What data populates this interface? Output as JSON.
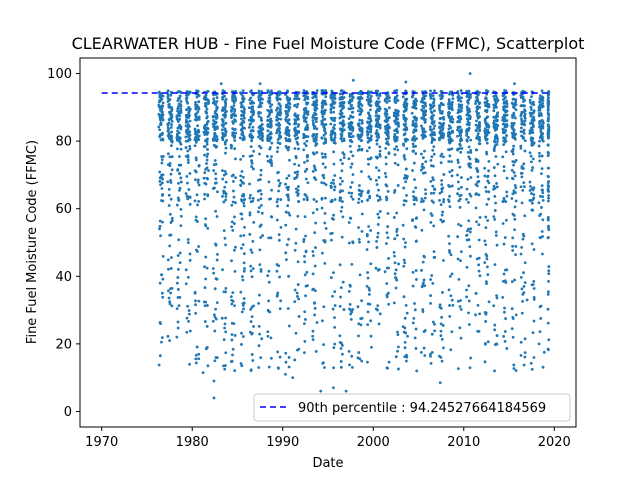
{
  "chart_data": {
    "type": "scatter",
    "title": "CLEARWATER HUB - Fine Fuel Moisture Code (FFMC), Scatterplot",
    "xlabel": "Date",
    "ylabel": "Fine Fuel Moisture Code (FFMC)",
    "xlim": [
      1967.6,
      2022.4
    ],
    "ylim": [
      -4.6,
      104.6
    ],
    "xticks": [
      1970,
      1980,
      1990,
      2000,
      2010,
      2020
    ],
    "xtick_labels": [
      "1970",
      "1980",
      "1990",
      "2000",
      "2010",
      "2020"
    ],
    "yticks": [
      0,
      20,
      40,
      60,
      80,
      100
    ],
    "ytick_labels": [
      "0",
      "20",
      "40",
      "60",
      "80",
      "100"
    ],
    "grid": false,
    "legend_position": "lower-right",
    "series": [
      {
        "name": "FFMC",
        "style": "points",
        "color": "#1f77b4",
        "data_range": {
          "x_start": 1976.3,
          "x_end": 2019.4,
          "fire_season_fraction": 0.5,
          "y_typical_max": 95,
          "y_min": 4,
          "y_max": 100
        },
        "sample_points": [
          [
            1976.4,
            90
          ],
          [
            1976.5,
            52
          ],
          [
            1976.5,
            26
          ],
          [
            1976.6,
            20.5
          ],
          [
            1976.7,
            35
          ],
          [
            1977.5,
            21
          ],
          [
            1978.3,
            22
          ],
          [
            1981.2,
            11.5
          ],
          [
            1982.4,
            4
          ],
          [
            1982.4,
            9
          ],
          [
            1982.5,
            15
          ],
          [
            1983.2,
            97
          ],
          [
            1984.6,
            26
          ],
          [
            1987.5,
            97
          ],
          [
            1990.3,
            11
          ],
          [
            1991.1,
            10
          ],
          [
            1993.5,
            32
          ],
          [
            1994.2,
            6
          ],
          [
            1995.6,
            7
          ],
          [
            1997.0,
            6
          ],
          [
            1997.8,
            98
          ],
          [
            1999.8,
            19
          ],
          [
            2003.6,
            97.5
          ],
          [
            2004.8,
            12
          ],
          [
            2007.4,
            8.5
          ],
          [
            2010.7,
            100
          ],
          [
            2013.4,
            12
          ],
          [
            2015.6,
            97
          ],
          [
            2017.0,
            33
          ],
          [
            2018.9,
            17.5
          ]
        ]
      },
      {
        "name": "90th percentile : 94.24527664184569",
        "style": "dashed-line",
        "color": "#0000ff",
        "x": [
          1970,
          2019.5
        ],
        "y": [
          94.24527664184569,
          94.24527664184569
        ]
      }
    ]
  }
}
